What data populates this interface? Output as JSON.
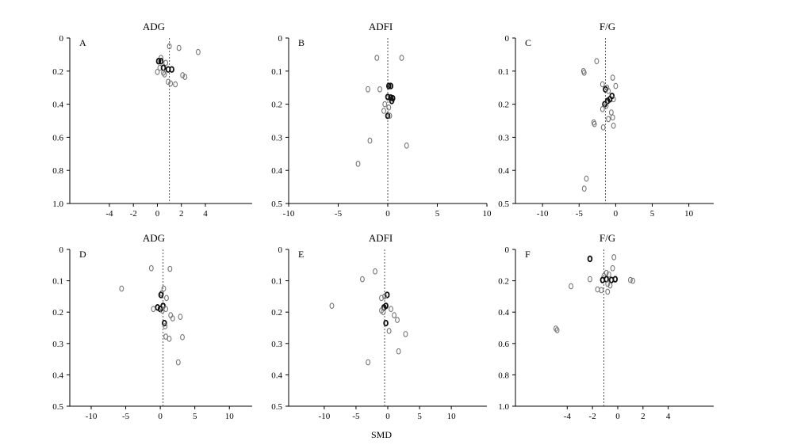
{
  "xlabel": "SMD",
  "chart_data": [
    {
      "type": "scatter",
      "panel": "A",
      "title": "ADG",
      "xticks": [
        -4,
        -2,
        0,
        2,
        4
      ],
      "xlim": [
        -7.3,
        7.9
      ],
      "yticks": [
        "0",
        "0.2",
        "0.4",
        "0.6",
        "0.8",
        "1.0"
      ],
      "ylim": [
        0,
        1.0
      ],
      "reference_x": 1.0,
      "points": [
        {
          "x": 1.0,
          "y": 0.05,
          "dark": false
        },
        {
          "x": 1.8,
          "y": 0.06,
          "dark": false
        },
        {
          "x": 3.4,
          "y": 0.085,
          "dark": false
        },
        {
          "x": 0.3,
          "y": 0.12,
          "dark": false
        },
        {
          "x": 0.1,
          "y": 0.14,
          "dark": true
        },
        {
          "x": 0.3,
          "y": 0.14,
          "dark": true
        },
        {
          "x": 0.7,
          "y": 0.15,
          "dark": false
        },
        {
          "x": 0.2,
          "y": 0.18,
          "dark": false
        },
        {
          "x": 0.5,
          "y": 0.18,
          "dark": true
        },
        {
          "x": 0.9,
          "y": 0.19,
          "dark": true
        },
        {
          "x": 1.2,
          "y": 0.19,
          "dark": true
        },
        {
          "x": 0.0,
          "y": 0.205,
          "dark": false
        },
        {
          "x": 0.5,
          "y": 0.21,
          "dark": false
        },
        {
          "x": 0.6,
          "y": 0.22,
          "dark": false
        },
        {
          "x": 2.1,
          "y": 0.225,
          "dark": false
        },
        {
          "x": 2.3,
          "y": 0.235,
          "dark": false
        },
        {
          "x": 0.9,
          "y": 0.265,
          "dark": false
        },
        {
          "x": 1.1,
          "y": 0.275,
          "dark": false
        },
        {
          "x": 1.5,
          "y": 0.28,
          "dark": false
        }
      ]
    },
    {
      "type": "scatter",
      "panel": "B",
      "title": "ADFI",
      "xticks": [
        -10,
        -5,
        0,
        5,
        10
      ],
      "xlim": [
        -10,
        10
      ],
      "yticks": [
        "0",
        "0.1",
        "0.2",
        "0.3",
        "0.4",
        "0.5"
      ],
      "ylim": [
        0,
        0.5
      ],
      "reference_x": 0.0,
      "points": [
        {
          "x": -1.1,
          "y": 0.06,
          "dark": false
        },
        {
          "x": 1.4,
          "y": 0.06,
          "dark": false
        },
        {
          "x": -2.0,
          "y": 0.155,
          "dark": false
        },
        {
          "x": -0.8,
          "y": 0.155,
          "dark": false
        },
        {
          "x": 0.1,
          "y": 0.145,
          "dark": true
        },
        {
          "x": 0.3,
          "y": 0.145,
          "dark": true
        },
        {
          "x": 0.0,
          "y": 0.178,
          "dark": true
        },
        {
          "x": 0.3,
          "y": 0.18,
          "dark": true
        },
        {
          "x": 0.5,
          "y": 0.182,
          "dark": true
        },
        {
          "x": 0.4,
          "y": 0.19,
          "dark": true
        },
        {
          "x": -0.3,
          "y": 0.2,
          "dark": false
        },
        {
          "x": 0.1,
          "y": 0.21,
          "dark": false
        },
        {
          "x": -0.4,
          "y": 0.22,
          "dark": false
        },
        {
          "x": 0.0,
          "y": 0.235,
          "dark": true
        },
        {
          "x": 0.2,
          "y": 0.235,
          "dark": false
        },
        {
          "x": -1.8,
          "y": 0.31,
          "dark": false
        },
        {
          "x": 1.9,
          "y": 0.325,
          "dark": false
        },
        {
          "x": -3.0,
          "y": 0.38,
          "dark": false
        }
      ]
    },
    {
      "type": "scatter",
      "panel": "C",
      "title": "F/G",
      "xticks": [
        -10,
        -5,
        0,
        5,
        10
      ],
      "xlim": [
        -13.7,
        13.4
      ],
      "yticks": [
        "0",
        "0.1",
        "0.2",
        "0.3",
        "0.4",
        "0.5"
      ],
      "ylim": [
        0,
        0.5
      ],
      "reference_x": -1.4,
      "points": [
        {
          "x": -2.6,
          "y": 0.07,
          "dark": false
        },
        {
          "x": -4.4,
          "y": 0.1,
          "dark": false
        },
        {
          "x": -4.3,
          "y": 0.105,
          "dark": false
        },
        {
          "x": -0.4,
          "y": 0.12,
          "dark": false
        },
        {
          "x": -1.8,
          "y": 0.14,
          "dark": false
        },
        {
          "x": -1.2,
          "y": 0.15,
          "dark": false
        },
        {
          "x": 0.0,
          "y": 0.145,
          "dark": false
        },
        {
          "x": -1.4,
          "y": 0.155,
          "dark": true
        },
        {
          "x": -1.0,
          "y": 0.16,
          "dark": false
        },
        {
          "x": -0.5,
          "y": 0.175,
          "dark": true
        },
        {
          "x": -0.3,
          "y": 0.185,
          "dark": false
        },
        {
          "x": -0.8,
          "y": 0.185,
          "dark": true
        },
        {
          "x": -1.1,
          "y": 0.19,
          "dark": true
        },
        {
          "x": -1.5,
          "y": 0.2,
          "dark": true
        },
        {
          "x": -1.3,
          "y": 0.205,
          "dark": false
        },
        {
          "x": -1.8,
          "y": 0.215,
          "dark": false
        },
        {
          "x": -0.6,
          "y": 0.225,
          "dark": false
        },
        {
          "x": -0.4,
          "y": 0.24,
          "dark": false
        },
        {
          "x": -1.0,
          "y": 0.245,
          "dark": false
        },
        {
          "x": -3.0,
          "y": 0.255,
          "dark": false
        },
        {
          "x": -2.9,
          "y": 0.26,
          "dark": false
        },
        {
          "x": -0.3,
          "y": 0.265,
          "dark": false
        },
        {
          "x": -1.7,
          "y": 0.27,
          "dark": false
        },
        {
          "x": -4.0,
          "y": 0.425,
          "dark": false
        },
        {
          "x": -4.3,
          "y": 0.455,
          "dark": false
        }
      ]
    },
    {
      "type": "scatter",
      "panel": "D",
      "title": "ADG",
      "xticks": [
        -10,
        -5,
        0,
        5,
        10
      ],
      "xlim": [
        -13.1,
        13.3
      ],
      "yticks": [
        "0",
        "0.1",
        "0.2",
        "0.3",
        "0.4",
        "0.5"
      ],
      "ylim": [
        0,
        0.5
      ],
      "reference_x": 0.4,
      "points": [
        {
          "x": -1.3,
          "y": 0.06,
          "dark": false
        },
        {
          "x": 1.4,
          "y": 0.062,
          "dark": false
        },
        {
          "x": -5.6,
          "y": 0.125,
          "dark": false
        },
        {
          "x": 0.5,
          "y": 0.125,
          "dark": false
        },
        {
          "x": 0.2,
          "y": 0.14,
          "dark": false
        },
        {
          "x": 0.1,
          "y": 0.145,
          "dark": true
        },
        {
          "x": 0.9,
          "y": 0.155,
          "dark": false
        },
        {
          "x": 0.4,
          "y": 0.18,
          "dark": true
        },
        {
          "x": -0.4,
          "y": 0.185,
          "dark": true
        },
        {
          "x": 0.0,
          "y": 0.19,
          "dark": true
        },
        {
          "x": 0.8,
          "y": 0.19,
          "dark": false
        },
        {
          "x": -1.0,
          "y": 0.19,
          "dark": false
        },
        {
          "x": 0.3,
          "y": 0.195,
          "dark": false
        },
        {
          "x": 1.5,
          "y": 0.21,
          "dark": false
        },
        {
          "x": 2.9,
          "y": 0.215,
          "dark": false
        },
        {
          "x": 1.8,
          "y": 0.22,
          "dark": false
        },
        {
          "x": 0.6,
          "y": 0.235,
          "dark": true
        },
        {
          "x": 0.7,
          "y": 0.245,
          "dark": false
        },
        {
          "x": 3.2,
          "y": 0.28,
          "dark": false
        },
        {
          "x": 0.8,
          "y": 0.278,
          "dark": false
        },
        {
          "x": 1.3,
          "y": 0.285,
          "dark": false
        },
        {
          "x": 2.6,
          "y": 0.36,
          "dark": false
        }
      ]
    },
    {
      "type": "scatter",
      "panel": "E",
      "title": "ADFI",
      "xticks": [
        -10,
        -5,
        0,
        5,
        10
      ],
      "xlim": [
        -15.6,
        15.6
      ],
      "yticks": [
        "0",
        "0.1",
        "0.2",
        "0.3",
        "0.4",
        "0.5"
      ],
      "ylim": [
        0,
        0.5
      ],
      "reference_x": -0.5,
      "points": [
        {
          "x": -2.0,
          "y": 0.07,
          "dark": false
        },
        {
          "x": -4.0,
          "y": 0.095,
          "dark": false
        },
        {
          "x": -0.1,
          "y": 0.145,
          "dark": true
        },
        {
          "x": -1.0,
          "y": 0.155,
          "dark": false
        },
        {
          "x": -0.5,
          "y": 0.15,
          "dark": false
        },
        {
          "x": -8.8,
          "y": 0.18,
          "dark": false
        },
        {
          "x": -0.3,
          "y": 0.18,
          "dark": true
        },
        {
          "x": -0.6,
          "y": 0.185,
          "dark": true
        },
        {
          "x": 0.5,
          "y": 0.19,
          "dark": false
        },
        {
          "x": -1.0,
          "y": 0.195,
          "dark": false
        },
        {
          "x": -0.7,
          "y": 0.2,
          "dark": false
        },
        {
          "x": 1.0,
          "y": 0.21,
          "dark": false
        },
        {
          "x": 1.5,
          "y": 0.225,
          "dark": false
        },
        {
          "x": -0.3,
          "y": 0.235,
          "dark": true
        },
        {
          "x": 0.2,
          "y": 0.26,
          "dark": false
        },
        {
          "x": 2.8,
          "y": 0.27,
          "dark": false
        },
        {
          "x": 1.7,
          "y": 0.325,
          "dark": false
        },
        {
          "x": -3.1,
          "y": 0.36,
          "dark": false
        }
      ]
    },
    {
      "type": "scatter",
      "panel": "F",
      "title": "F/G",
      "xticks": [
        -4,
        -2,
        0,
        2,
        4
      ],
      "xlim": [
        -8.1,
        7.6
      ],
      "yticks": [
        "0",
        "0.2",
        "0.4",
        "0.6",
        "0.8",
        "1.0"
      ],
      "ylim": [
        0,
        1.0
      ],
      "reference_x": -1.1,
      "points": [
        {
          "x": -2.2,
          "y": 0.06,
          "dark": true
        },
        {
          "x": -0.3,
          "y": 0.05,
          "dark": false
        },
        {
          "x": -0.4,
          "y": 0.12,
          "dark": false
        },
        {
          "x": -0.9,
          "y": 0.15,
          "dark": false
        },
        {
          "x": -0.7,
          "y": 0.16,
          "dark": false
        },
        {
          "x": -1.1,
          "y": 0.17,
          "dark": false
        },
        {
          "x": -2.2,
          "y": 0.19,
          "dark": false
        },
        {
          "x": -1.2,
          "y": 0.195,
          "dark": true
        },
        {
          "x": -0.9,
          "y": 0.19,
          "dark": true
        },
        {
          "x": -0.5,
          "y": 0.195,
          "dark": true
        },
        {
          "x": -0.2,
          "y": 0.19,
          "dark": true
        },
        {
          "x": 1.0,
          "y": 0.195,
          "dark": false
        },
        {
          "x": 1.2,
          "y": 0.2,
          "dark": false
        },
        {
          "x": -0.8,
          "y": 0.22,
          "dark": false
        },
        {
          "x": -0.6,
          "y": 0.23,
          "dark": false
        },
        {
          "x": -3.7,
          "y": 0.235,
          "dark": false
        },
        {
          "x": -1.6,
          "y": 0.255,
          "dark": false
        },
        {
          "x": -1.3,
          "y": 0.26,
          "dark": false
        },
        {
          "x": -0.8,
          "y": 0.27,
          "dark": false
        },
        {
          "x": -4.9,
          "y": 0.505,
          "dark": false
        },
        {
          "x": -4.8,
          "y": 0.515,
          "dark": false
        }
      ]
    }
  ]
}
